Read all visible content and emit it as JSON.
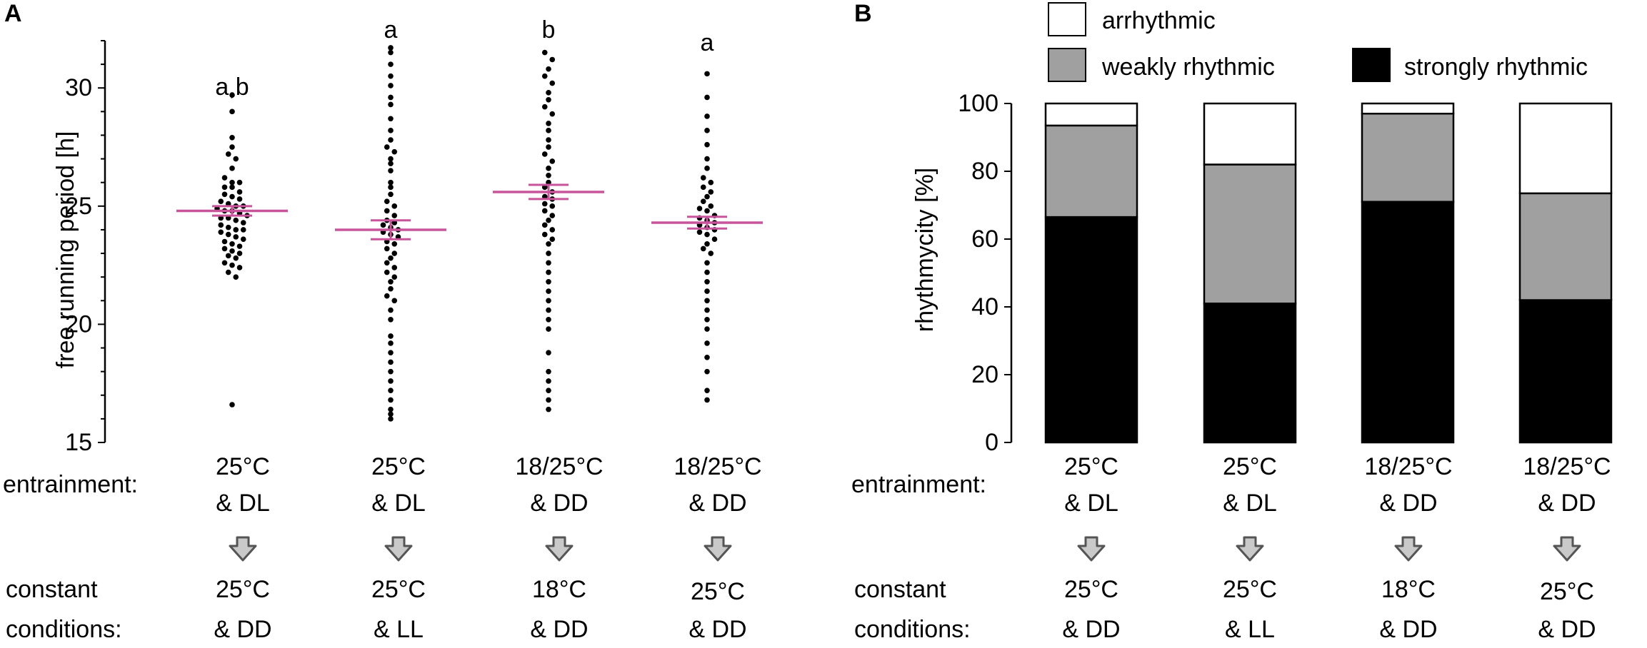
{
  "panel_a": {
    "label": "A"
  },
  "panel_b": {
    "label": "B"
  },
  "colors": {
    "dots": "#000000",
    "mean_line": "#c8559b",
    "weak": "#a0a0a0",
    "strong": "#000000",
    "arrhythmic": "#ffffff",
    "arrow_fill": "#c9c9c9",
    "arrow_stroke": "#555555"
  },
  "row_labels": {
    "entrainment": "entrainment:",
    "constant": "constant",
    "conditions": "conditions:"
  },
  "conditions": [
    {
      "entrain1": "25°C",
      "entrain2": "& DL",
      "const1": "25°C",
      "const2": "& DD"
    },
    {
      "entrain1": "25°C",
      "entrain2": "& DL",
      "const1": "25°C",
      "const2": "& LL"
    },
    {
      "entrain1": "18/25°C",
      "entrain2": "& DD",
      "const1": "18°C",
      "const2": "& DD"
    },
    {
      "entrain1": "18/25°C",
      "entrain2": "& DD",
      "const1": "25°C",
      "const2": "& DD"
    }
  ],
  "chart_data": [
    {
      "type": "scatter",
      "title": "",
      "xlabel": "",
      "ylabel": "free running period [h]",
      "ylim": [
        15,
        32
      ],
      "yticks": [
        15,
        20,
        25,
        30
      ],
      "significance": [
        "a,b",
        "a",
        "b",
        "a"
      ],
      "means": [
        24.8,
        24.0,
        25.6,
        24.3
      ],
      "sem": [
        0.2,
        0.4,
        0.3,
        0.25
      ],
      "groups": [
        {
          "name": "25°C & DL → 25°C & DD",
          "values": [
            29.7,
            29.0,
            27.9,
            27.5,
            27.2,
            27.0,
            26.6,
            26.2,
            26.0,
            26.0,
            25.8,
            25.8,
            25.6,
            25.5,
            25.4,
            25.3,
            25.2,
            25.1,
            25.0,
            25.0,
            24.9,
            24.8,
            24.8,
            24.7,
            24.6,
            24.5,
            24.5,
            24.4,
            24.3,
            24.2,
            24.1,
            24.0,
            24.0,
            23.9,
            23.8,
            23.7,
            23.6,
            23.5,
            23.4,
            23.3,
            23.2,
            23.1,
            23.0,
            22.9,
            22.8,
            22.6,
            22.5,
            22.4,
            22.2,
            22.0,
            16.6
          ]
        },
        {
          "name": "25°C & DL → 25°C & LL",
          "values": [
            31.7,
            31.5,
            31.0,
            30.5,
            30.1,
            29.6,
            29.3,
            28.7,
            28.2,
            27.8,
            27.5,
            27.3,
            27.0,
            26.8,
            26.5,
            26.0,
            25.8,
            25.5,
            25.2,
            25.0,
            24.8,
            24.6,
            24.4,
            24.3,
            24.2,
            24.1,
            24.0,
            23.9,
            23.8,
            23.7,
            23.5,
            23.4,
            23.2,
            23.0,
            22.8,
            22.6,
            22.4,
            22.2,
            22.0,
            21.8,
            21.5,
            21.2,
            21.0,
            20.6,
            20.2,
            19.5,
            19.2,
            18.8,
            18.4,
            18.0,
            17.6,
            17.2,
            16.8,
            16.4,
            16.2,
            16.0
          ]
        },
        {
          "name": "18/25°C & DD → 18°C & DD",
          "values": [
            31.5,
            31.2,
            30.8,
            30.5,
            30.2,
            29.8,
            29.5,
            29.2,
            28.9,
            28.5,
            28.2,
            27.8,
            27.5,
            27.2,
            26.9,
            26.6,
            26.3,
            26.0,
            25.8,
            25.6,
            25.4,
            25.3,
            25.1,
            25.0,
            24.8,
            24.6,
            24.4,
            24.2,
            24.0,
            23.8,
            23.6,
            23.4,
            23.0,
            22.6,
            22.2,
            21.8,
            21.4,
            21.0,
            20.6,
            20.2,
            19.8,
            18.8,
            18.0,
            17.6,
            17.2,
            16.8,
            16.4
          ]
        },
        {
          "name": "18/25°C & DD → 25°C & DD",
          "values": [
            30.6,
            29.6,
            28.8,
            28.2,
            27.6,
            27.0,
            26.6,
            26.2,
            26.0,
            25.8,
            25.6,
            25.4,
            25.2,
            25.0,
            24.9,
            24.8,
            24.6,
            24.5,
            24.4,
            24.3,
            24.2,
            24.1,
            24.0,
            23.9,
            23.8,
            23.6,
            23.4,
            23.2,
            23.0,
            22.6,
            22.2,
            21.8,
            21.4,
            21.0,
            20.6,
            20.2,
            19.8,
            19.2,
            18.6,
            18.0,
            17.2,
            16.8
          ]
        }
      ]
    },
    {
      "type": "bar",
      "stacked": true,
      "title": "",
      "xlabel": "",
      "ylabel": "rhythmycity [%]",
      "ylim": [
        0,
        100
      ],
      "yticks": [
        0,
        20,
        40,
        60,
        80,
        100
      ],
      "categories": [
        "25°C & DL → 25°C & DD",
        "25°C & DL → 25°C & LL",
        "18/25°C & DD → 18°C & DD",
        "18/25°C & DD → 25°C & DD"
      ],
      "series": [
        {
          "name": "strongly rhythmic",
          "values": [
            66.5,
            41,
            71,
            42
          ]
        },
        {
          "name": "weakly rhythmic",
          "values": [
            27,
            41,
            26,
            31.5
          ]
        },
        {
          "name": "arrhythmic",
          "values": [
            6.5,
            18,
            3,
            26.5
          ]
        }
      ],
      "legend": [
        "arrhythmic",
        "weakly rhythmic",
        "strongly rhythmic"
      ]
    }
  ]
}
